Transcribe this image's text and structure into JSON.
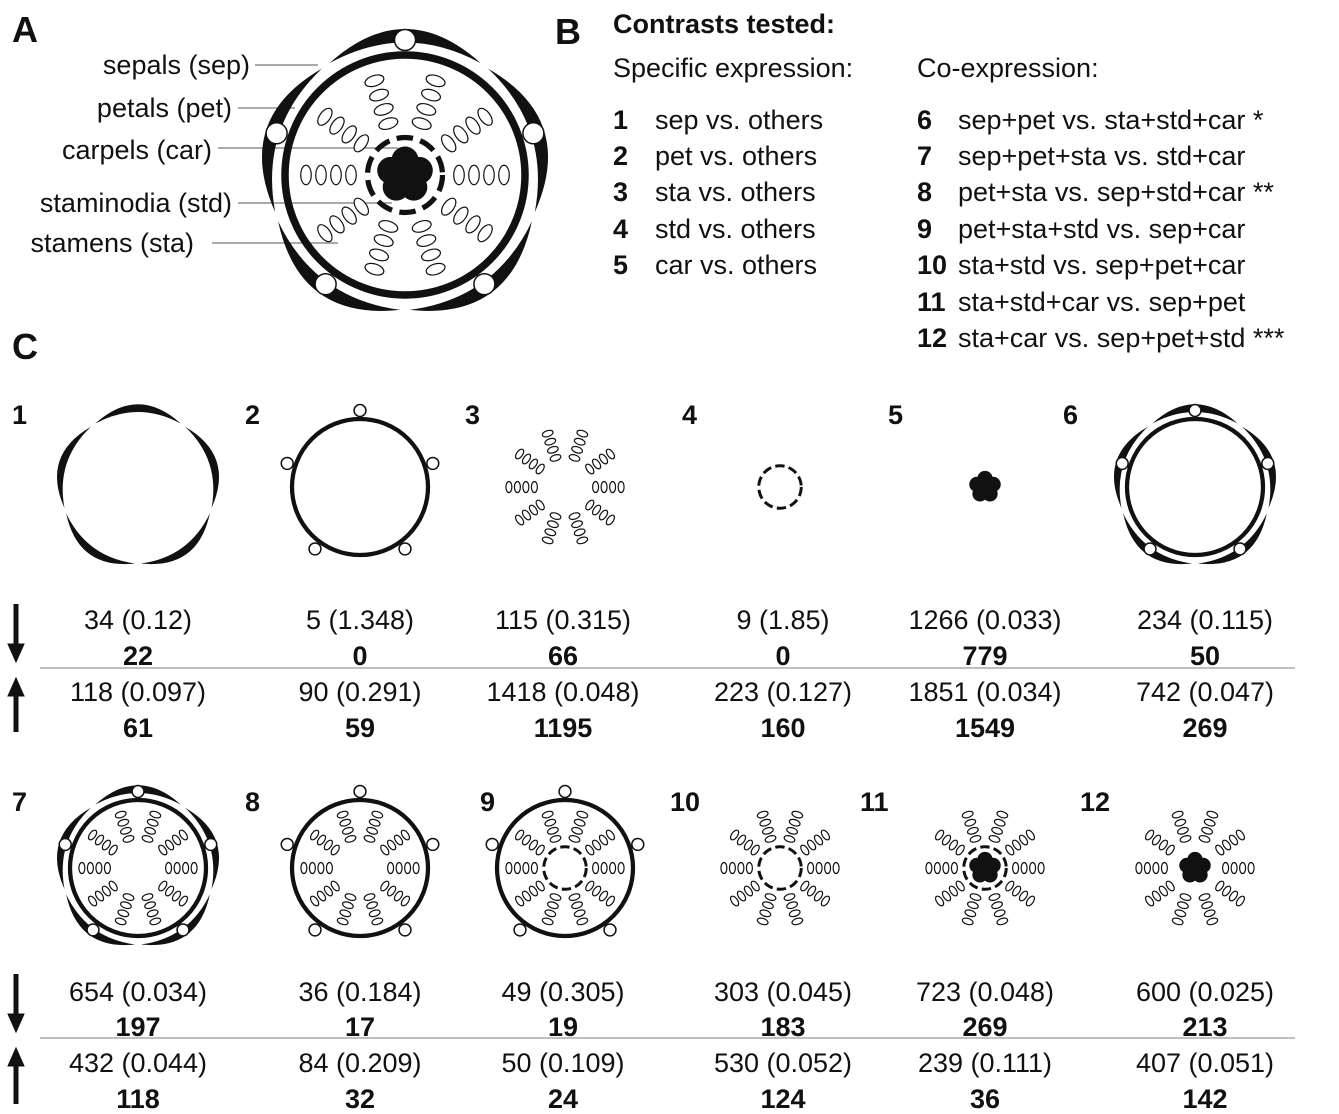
{
  "panel_a": {
    "letter": "A",
    "labels": [
      "sepals (sep)",
      "petals (pet)",
      "carpels (car)",
      "staminodia (std)",
      "stamens (sta)"
    ]
  },
  "panel_b": {
    "letter": "B",
    "title": "Contrasts tested:",
    "specific_heading": "Specific expression:",
    "co_heading": "Co-expression:",
    "specific": [
      {
        "number": 1,
        "text": "sep vs. others"
      },
      {
        "number": 2,
        "text": "pet vs. others"
      },
      {
        "number": 3,
        "text": "sta vs. others"
      },
      {
        "number": 4,
        "text": "std vs. others"
      },
      {
        "number": 5,
        "text": "car vs. others"
      }
    ],
    "co": [
      {
        "number": 6,
        "text": "sep+pet vs. sta+std+car *"
      },
      {
        "number": 7,
        "text": "sep+pet+sta vs. std+car"
      },
      {
        "number": 8,
        "text": "pet+sta vs. sep+std+car **"
      },
      {
        "number": 9,
        "text": "pet+sta+std vs. sep+car"
      },
      {
        "number": 10,
        "text": "sta+std vs. sep+pet+car"
      },
      {
        "number": 11,
        "text": "sta+std+car vs. sep+pet"
      },
      {
        "number": 12,
        "text": "sta+car vs. sep+pet+std ***"
      }
    ]
  },
  "panel_c": {
    "letter": "C",
    "contrasts": [
      {
        "number": 1,
        "down": "34 (0.12)",
        "down_bold": 22,
        "up": "118 (0.097)",
        "up_bold": 61
      },
      {
        "number": 2,
        "down": "5 (1.348)",
        "down_bold": 0,
        "up": "90 (0.291)",
        "up_bold": 59
      },
      {
        "number": 3,
        "down": "115 (0.315)",
        "down_bold": 66,
        "up": "1418 (0.048)",
        "up_bold": 1195
      },
      {
        "number": 4,
        "down": "9 (1.85)",
        "down_bold": 0,
        "up": "223 (0.127)",
        "up_bold": 160
      },
      {
        "number": 5,
        "down": "1266 (0.033)",
        "down_bold": 779,
        "up": "1851 (0.034)",
        "up_bold": 1549
      },
      {
        "number": 6,
        "down": "234 (0.115)",
        "down_bold": 50,
        "up": "742 (0.047)",
        "up_bold": 269
      },
      {
        "number": 7,
        "down": "654 (0.034)",
        "down_bold": 197,
        "up": "432 (0.044)",
        "up_bold": 118
      },
      {
        "number": 8,
        "down": "36 (0.184)",
        "down_bold": 17,
        "up": "84 (0.209)",
        "up_bold": 32
      },
      {
        "number": 9,
        "down": "49 (0.305)",
        "down_bold": 19,
        "up": "50 (0.109)",
        "up_bold": 24
      },
      {
        "number": 10,
        "down": "303 (0.045)",
        "down_bold": 183,
        "up": "530 (0.052)",
        "up_bold": 124
      },
      {
        "number": 11,
        "down": "723 (0.048)",
        "down_bold": 269,
        "up": "239 (0.111)",
        "up_bold": 36
      },
      {
        "number": 12,
        "down": "600 (0.025)",
        "down_bold": 213,
        "up": "407 (0.051)",
        "up_bold": 142
      }
    ]
  }
}
